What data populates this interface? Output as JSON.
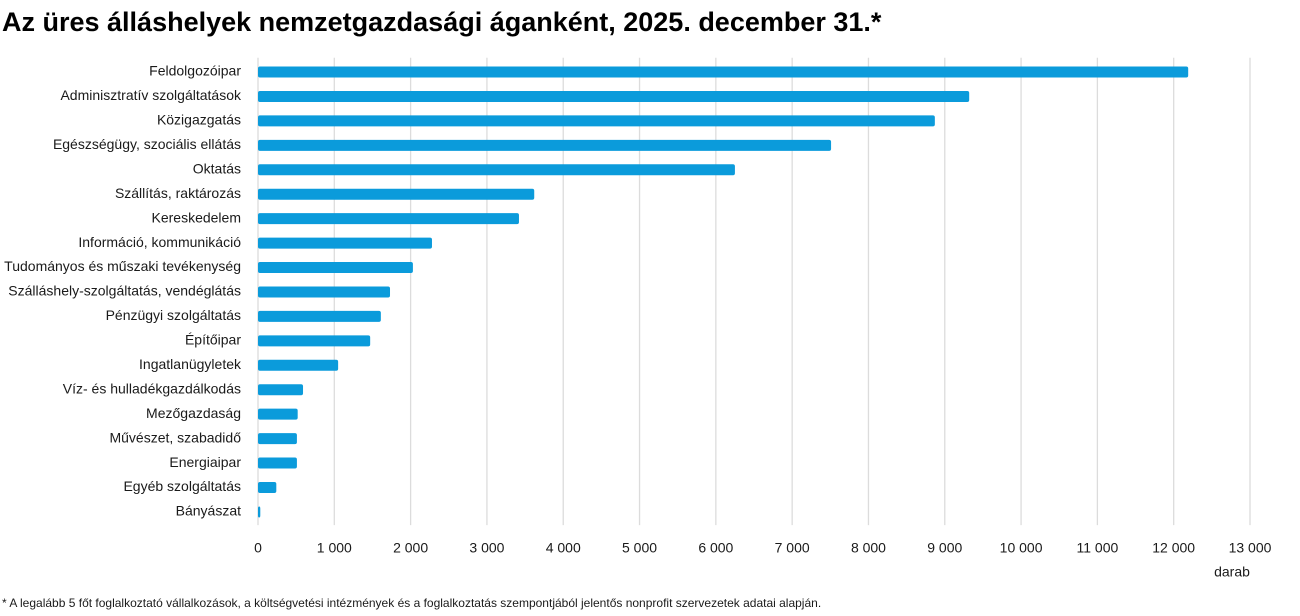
{
  "chart_data": {
    "type": "hbar",
    "title": "Az üres álláshelyek nemzetgazdasági áganként, 2025. december 31.*",
    "categories": [
      "Feldolgozóipar",
      "Adminisztratív szolgáltatások",
      "Közigazgatás",
      "Egészségügy, szociális ellátás",
      "Oktatás",
      "Szállítás, raktározás",
      "Kereskedelem",
      "Információ, kommunikáció",
      "Tudományos és műszaki tevékenység",
      "Szálláshely-szolgáltatás, vendéglátás",
      "Pénzügyi szolgáltatás",
      "Építőipar",
      "Ingatlanügyletek",
      "Víz- és hulladékgazdálkodás",
      "Mezőgazdaság",
      "Művészet, szabadidő",
      "Energiaipar",
      "Egyéb szolgáltatás",
      "Bányászat"
    ],
    "values": [
      12190,
      9320,
      8870,
      7510,
      6250,
      3620,
      3420,
      2280,
      2030,
      1730,
      1610,
      1470,
      1050,
      590,
      520,
      510,
      510,
      240,
      30
    ],
    "color": "#0b9bdb",
    "xlim": [
      0,
      13000
    ],
    "xticks": [
      0,
      {
        "value": 1000,
        "label": "1 000"
      },
      {
        "value": 2000,
        "label": "2 000"
      },
      {
        "value": 3000,
        "label": "3 000"
      },
      {
        "value": 4000,
        "label": "4 000"
      },
      {
        "value": 5000,
        "label": "5 000"
      },
      {
        "value": 6000,
        "label": "6 000"
      },
      {
        "value": 7000,
        "label": "7 000"
      },
      {
        "value": 8000,
        "label": "8 000"
      },
      {
        "value": 9000,
        "label": "9 000"
      },
      {
        "value": 10000,
        "label": "10 000"
      },
      {
        "value": 11000,
        "label": "11 000"
      },
      {
        "value": 12000,
        "label": "12 000"
      },
      {
        "value": 13000,
        "label": "13 000"
      }
    ],
    "xlabel": "darab",
    "grid": true,
    "footnote": "* A legalább 5 főt foglalkoztató vállalkozások, a költségvetési intézmények és a foglalkoztatás szempontjából jelentős nonprofit szervezetek adatai alapján."
  }
}
